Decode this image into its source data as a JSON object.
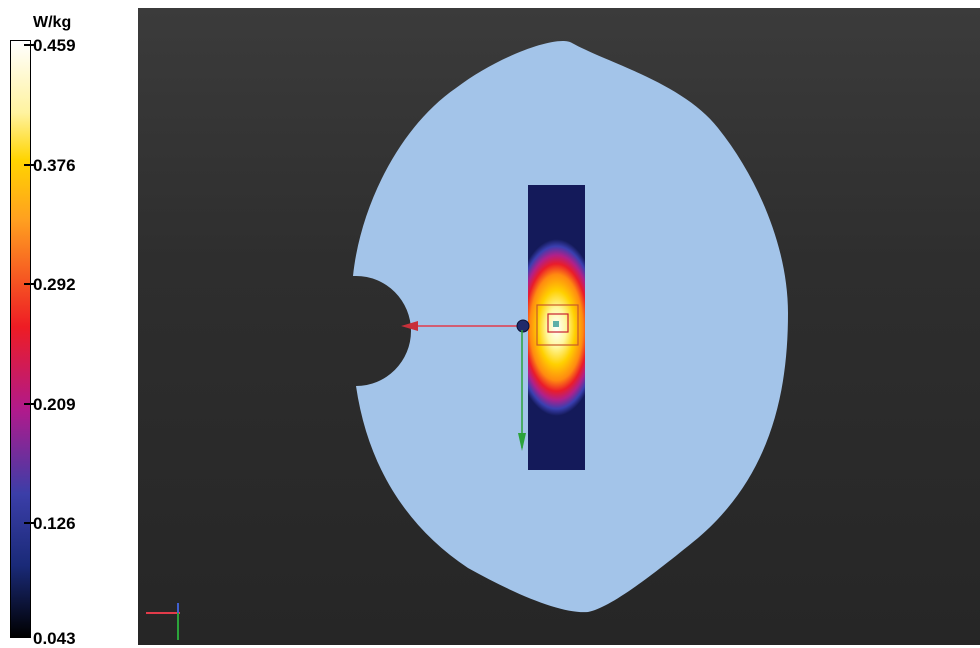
{
  "legend": {
    "unit": "W/kg",
    "ticks": [
      "0.459",
      "0.376",
      "0.292",
      "0.209",
      "0.126",
      "0.043"
    ]
  },
  "colors": {
    "background": "#2e2e2e",
    "phantom": "#a3c4e9",
    "line": "#e23b4a"
  },
  "icons": [
    "axis-triad-icon",
    "probe-marker-icon",
    "source-point-icon"
  ]
}
